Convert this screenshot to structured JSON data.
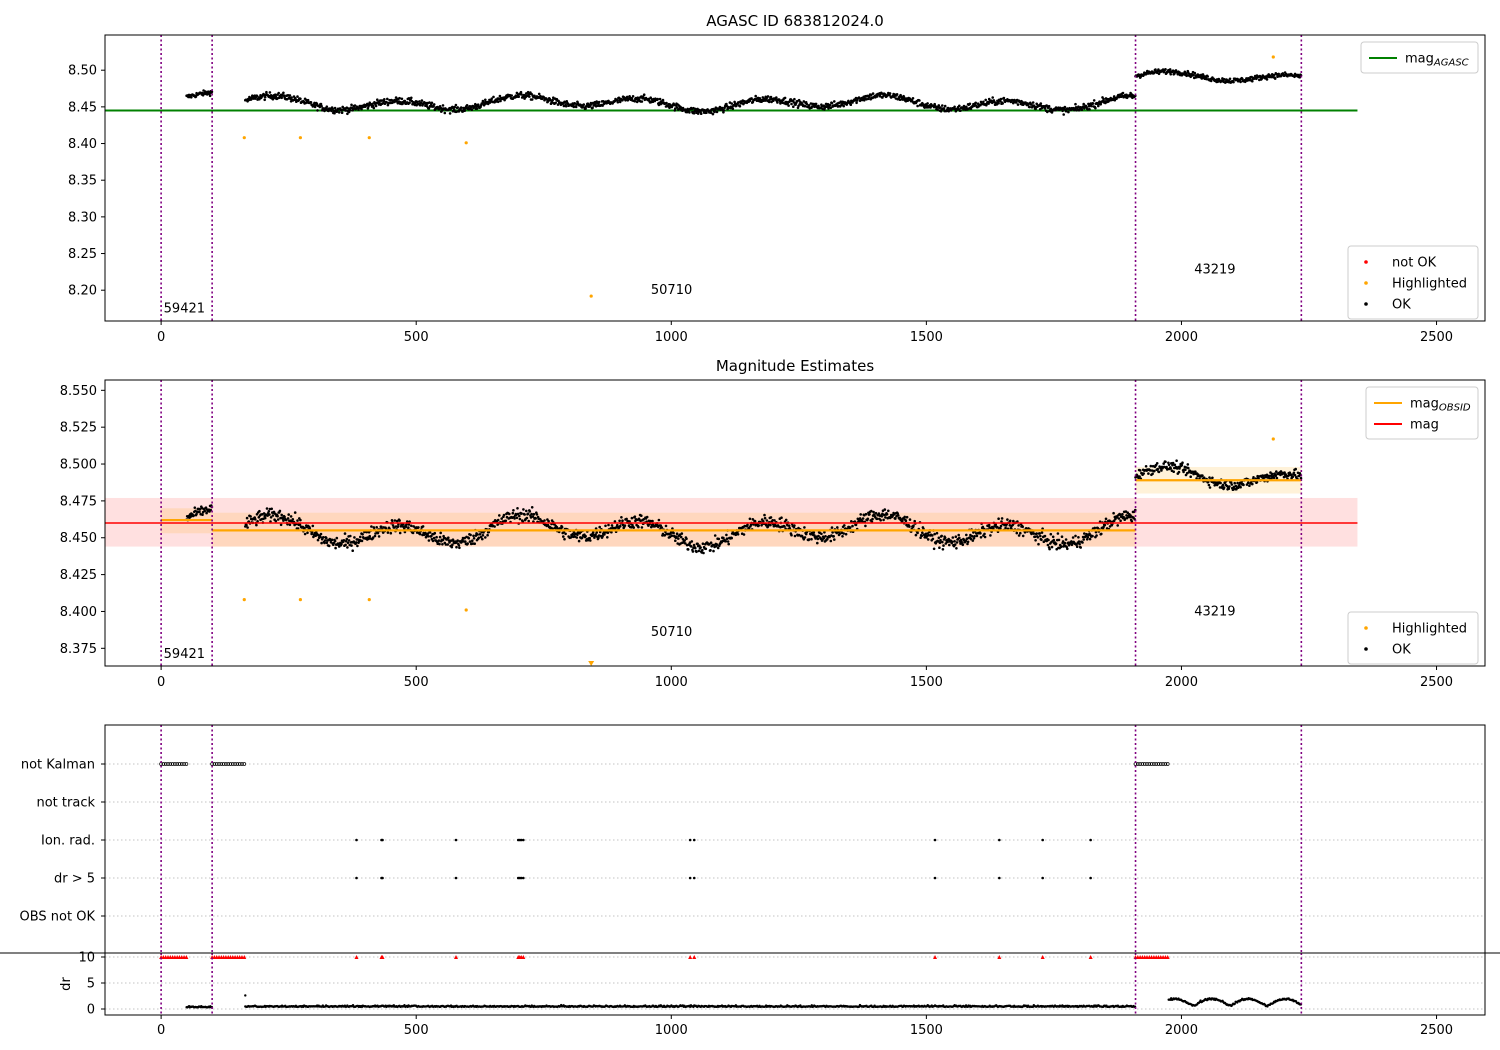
{
  "chart_data": [
    {
      "type": "scatter",
      "title": "AGASC ID 683812024.0",
      "xlim": [
        -110,
        2595
      ],
      "ylim": [
        8.158,
        8.548
      ],
      "xticks": [
        0,
        500,
        1000,
        1500,
        2000,
        2500
      ],
      "yticks": [
        8.2,
        8.25,
        8.3,
        8.35,
        8.4,
        8.45,
        8.5
      ],
      "ytick_labels": [
        "8.20",
        "8.25",
        "8.30",
        "8.35",
        "8.40",
        "8.45",
        "8.50"
      ],
      "obsid_boundaries": [
        0,
        100,
        1910,
        2235
      ],
      "obsid_labels": [
        {
          "text": "59421",
          "x": 5,
          "y": 8.175
        },
        {
          "text": "50710",
          "x": 960,
          "y": 8.2
        },
        {
          "text": "43219",
          "x": 2025,
          "y": 8.228
        }
      ],
      "mag_agasc": {
        "value": 8.445,
        "x_range": [
          -110,
          2345
        ],
        "color": "#008000"
      },
      "segments": [
        {
          "x_range": [
            50,
            100
          ],
          "y_mean": 8.462,
          "scatter": 0.006
        },
        {
          "x_range": [
            165,
            1910
          ],
          "y_mean": 8.455,
          "scatter": 0.008
        },
        {
          "x_range": [
            1910,
            2235
          ],
          "y_mean": 8.49,
          "scatter": 0.006
        }
      ],
      "highlighted_points": [
        {
          "x": 163,
          "y": 8.408
        },
        {
          "x": 273,
          "y": 8.408
        },
        {
          "x": 408,
          "y": 8.408
        },
        {
          "x": 598,
          "y": 8.401
        },
        {
          "x": 843,
          "y": 8.192
        },
        {
          "x": 2180,
          "y": 8.518
        }
      ],
      "legend_upper": [
        {
          "label": "mag",
          "sub": "AGASC",
          "color": "#008000"
        }
      ],
      "legend_lower": [
        {
          "label": "not OK",
          "color": "#ff0000"
        },
        {
          "label": "Highlighted",
          "color": "#ffa500"
        },
        {
          "label": "OK",
          "color": "#000000"
        }
      ]
    },
    {
      "type": "scatter",
      "title": "Magnitude Estimates",
      "xlim": [
        -110,
        2595
      ],
      "ylim": [
        8.363,
        8.557
      ],
      "xticks": [
        0,
        500,
        1000,
        1500,
        2000,
        2500
      ],
      "yticks": [
        8.375,
        8.4,
        8.425,
        8.45,
        8.475,
        8.5,
        8.525,
        8.55
      ],
      "ytick_labels": [
        "8.375",
        "8.400",
        "8.425",
        "8.450",
        "8.475",
        "8.500",
        "8.525",
        "8.550"
      ],
      "obsid_boundaries": [
        0,
        100,
        1910,
        2235
      ],
      "obsid_labels": [
        {
          "text": "59421",
          "x": 5,
          "y": 8.371
        },
        {
          "text": "50710",
          "x": 960,
          "y": 8.386
        },
        {
          "text": "43219",
          "x": 2025,
          "y": 8.4
        }
      ],
      "mag": {
        "value": 8.46,
        "band": [
          8.444,
          8.477
        ],
        "x_range": [
          -110,
          2345
        ],
        "color": "#ff0000"
      },
      "mag_obsid": [
        {
          "x_range": [
            0,
            100
          ],
          "value": 8.462,
          "band": [
            8.453,
            8.47
          ]
        },
        {
          "x_range": [
            100,
            1910
          ],
          "value": 8.455,
          "band": [
            8.444,
            8.467
          ]
        },
        {
          "x_range": [
            1910,
            2235
          ],
          "value": 8.489,
          "band": [
            8.48,
            8.498
          ]
        }
      ],
      "segments": [
        {
          "x_range": [
            50,
            100
          ],
          "y_mean": 8.462,
          "scatter": 0.006
        },
        {
          "x_range": [
            165,
            1910
          ],
          "y_mean": 8.455,
          "scatter": 0.008
        },
        {
          "x_range": [
            1910,
            2235
          ],
          "y_mean": 8.49,
          "scatter": 0.006
        }
      ],
      "highlighted_points": [
        {
          "x": 163,
          "y": 8.408
        },
        {
          "x": 273,
          "y": 8.408
        },
        {
          "x": 408,
          "y": 8.408
        },
        {
          "x": 598,
          "y": 8.401
        },
        {
          "x": 843,
          "y": 8.365
        },
        {
          "x": 2180,
          "y": 8.517
        }
      ],
      "legend_upper": [
        {
          "label": "mag",
          "sub": "OBSID",
          "color": "#ffa500"
        },
        {
          "label": "mag",
          "sub": "",
          "color": "#ff0000"
        }
      ],
      "legend_lower": [
        {
          "label": "Highlighted",
          "color": "#ffa500"
        },
        {
          "label": "OK",
          "color": "#000000"
        }
      ]
    },
    {
      "type": "scatter",
      "title": "",
      "xlim": [
        -110,
        2595
      ],
      "categories": [
        "not Kalman",
        "not track",
        "Ion. rad.",
        "dr > 5",
        "OBS not OK"
      ],
      "obsid_boundaries": [
        0,
        100,
        1910,
        2235
      ],
      "flags": {
        "not Kalman": [
          [
            0,
            50
          ],
          [
            100,
            165
          ],
          [
            1910,
            1975
          ]
        ],
        "not track": [],
        "Ion. rad.": [
          383,
          432,
          434,
          578,
          700,
          703,
          706,
          710,
          1037,
          1045,
          1517,
          1643,
          1728,
          1822
        ],
        "dr > 5": [
          383,
          432,
          434,
          578,
          700,
          703,
          706,
          710,
          1037,
          1045,
          1517,
          1643,
          1728,
          1822
        ],
        "OBS not OK": []
      },
      "dr_panel": {
        "ylabel": "dr",
        "yticks": [
          0,
          5,
          10
        ],
        "ylim": [
          -1,
          10.5
        ],
        "clip_points_x": [
          383,
          432,
          434,
          578,
          700,
          703,
          706,
          710,
          1037,
          1045,
          1517,
          1643,
          1728,
          1822
        ],
        "clip_ranges": [
          [
            0,
            50
          ],
          [
            100,
            165
          ],
          [
            1910,
            1975
          ]
        ],
        "baseline": 0.3,
        "segments": [
          {
            "x_range": [
              50,
              100
            ],
            "level": 0.3
          },
          {
            "x_range": [
              165,
              1910
            ],
            "level": 0.4
          },
          {
            "x_range": [
              1975,
              2235
            ],
            "level": 1.2
          }
        ]
      }
    }
  ]
}
